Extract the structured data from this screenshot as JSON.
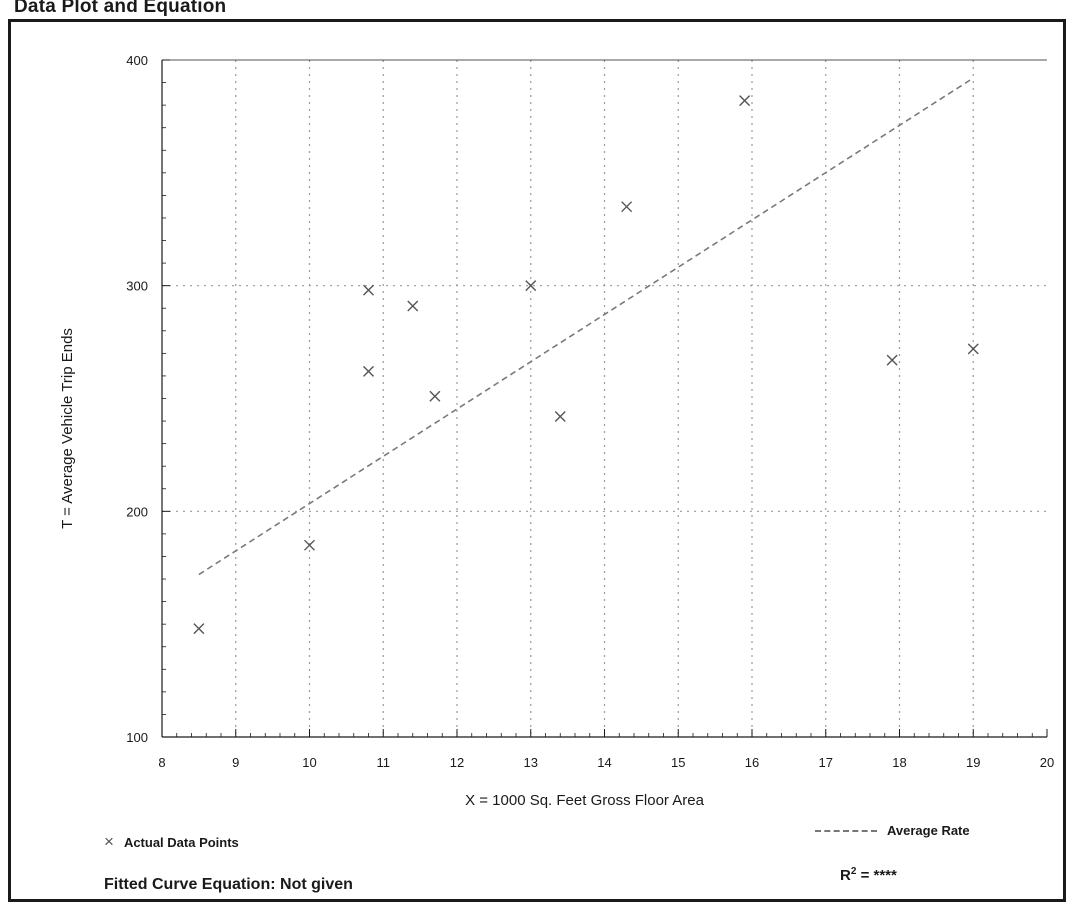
{
  "page": {
    "title": "Data Plot and Equation"
  },
  "legend": {
    "points_symbol": "×",
    "points_label": "Actual Data Points",
    "average_label": "Average Rate"
  },
  "footer": {
    "fitted_curve_label": "Fitted Curve Equation:",
    "fitted_curve_value": "Not given",
    "r2_lhs": "R",
    "r2_exp": "2",
    "r2_rhs": " = ****"
  },
  "chart_data": {
    "type": "scatter",
    "xlabel": "X = 1000 Sq. Feet Gross Floor Area",
    "ylabel": "T = Average Vehicle Trip Ends",
    "xlim": [
      8,
      20
    ],
    "ylim": [
      100,
      400
    ],
    "xticks": [
      8,
      9,
      10,
      11,
      12,
      13,
      14,
      15,
      16,
      17,
      18,
      19,
      20
    ],
    "yticks": [
      100,
      200,
      300,
      400
    ],
    "grid": true,
    "points": [
      {
        "x": 8.5,
        "y": 148
      },
      {
        "x": 10.0,
        "y": 185
      },
      {
        "x": 10.8,
        "y": 298
      },
      {
        "x": 10.8,
        "y": 262
      },
      {
        "x": 11.4,
        "y": 291
      },
      {
        "x": 11.7,
        "y": 251
      },
      {
        "x": 13.0,
        "y": 300
      },
      {
        "x": 13.4,
        "y": 242
      },
      {
        "x": 14.3,
        "y": 335
      },
      {
        "x": 15.9,
        "y": 382
      },
      {
        "x": 17.9,
        "y": 267
      },
      {
        "x": 19.0,
        "y": 272
      }
    ],
    "average_rate_line": [
      {
        "x": 8.5,
        "y": 172
      },
      {
        "x": 19.0,
        "y": 392
      }
    ],
    "colors": {
      "marker": "#555555",
      "grid": "#9a9a9a",
      "average_line": "#7a7a7a",
      "axis": "#1a1a1a"
    }
  }
}
